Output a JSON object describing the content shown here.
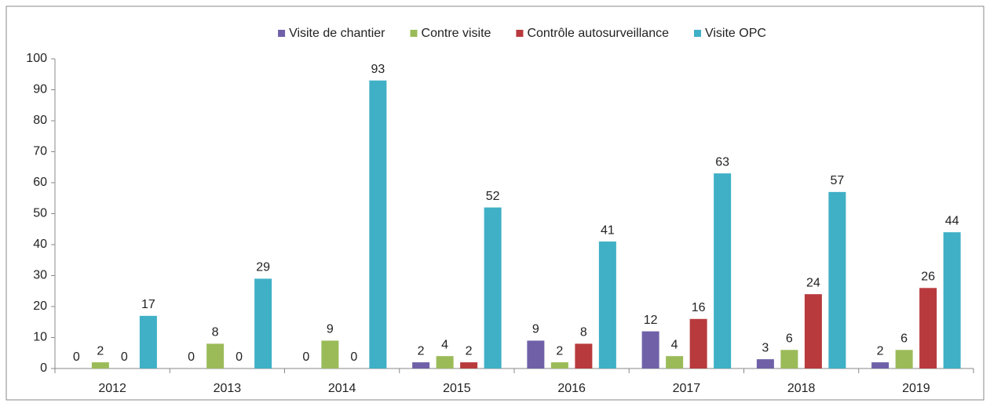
{
  "chart_data": {
    "type": "bar",
    "categories": [
      "2012",
      "2013",
      "2014",
      "2015",
      "2016",
      "2017",
      "2018",
      "2019"
    ],
    "series": [
      {
        "name": "Visite de chantier",
        "color": "#7060a8",
        "values": [
          0,
          0,
          0,
          2,
          9,
          12,
          3,
          2
        ]
      },
      {
        "name": "Contre visite",
        "color": "#9bbb59",
        "values": [
          2,
          8,
          9,
          4,
          2,
          4,
          6,
          6
        ]
      },
      {
        "name": "Contrôle autosurveillance",
        "color": "#b83a3d",
        "values": [
          0,
          0,
          0,
          2,
          8,
          16,
          24,
          26
        ]
      },
      {
        "name": "Visite OPC",
        "color": "#3fb0c6",
        "values": [
          17,
          29,
          93,
          52,
          41,
          63,
          57,
          44
        ]
      }
    ],
    "ylim": [
      0,
      100
    ],
    "yticks": [
      0,
      10,
      20,
      30,
      40,
      50,
      60,
      70,
      80,
      90,
      100
    ],
    "grid": false,
    "legend": "top",
    "data_labels": true
  }
}
